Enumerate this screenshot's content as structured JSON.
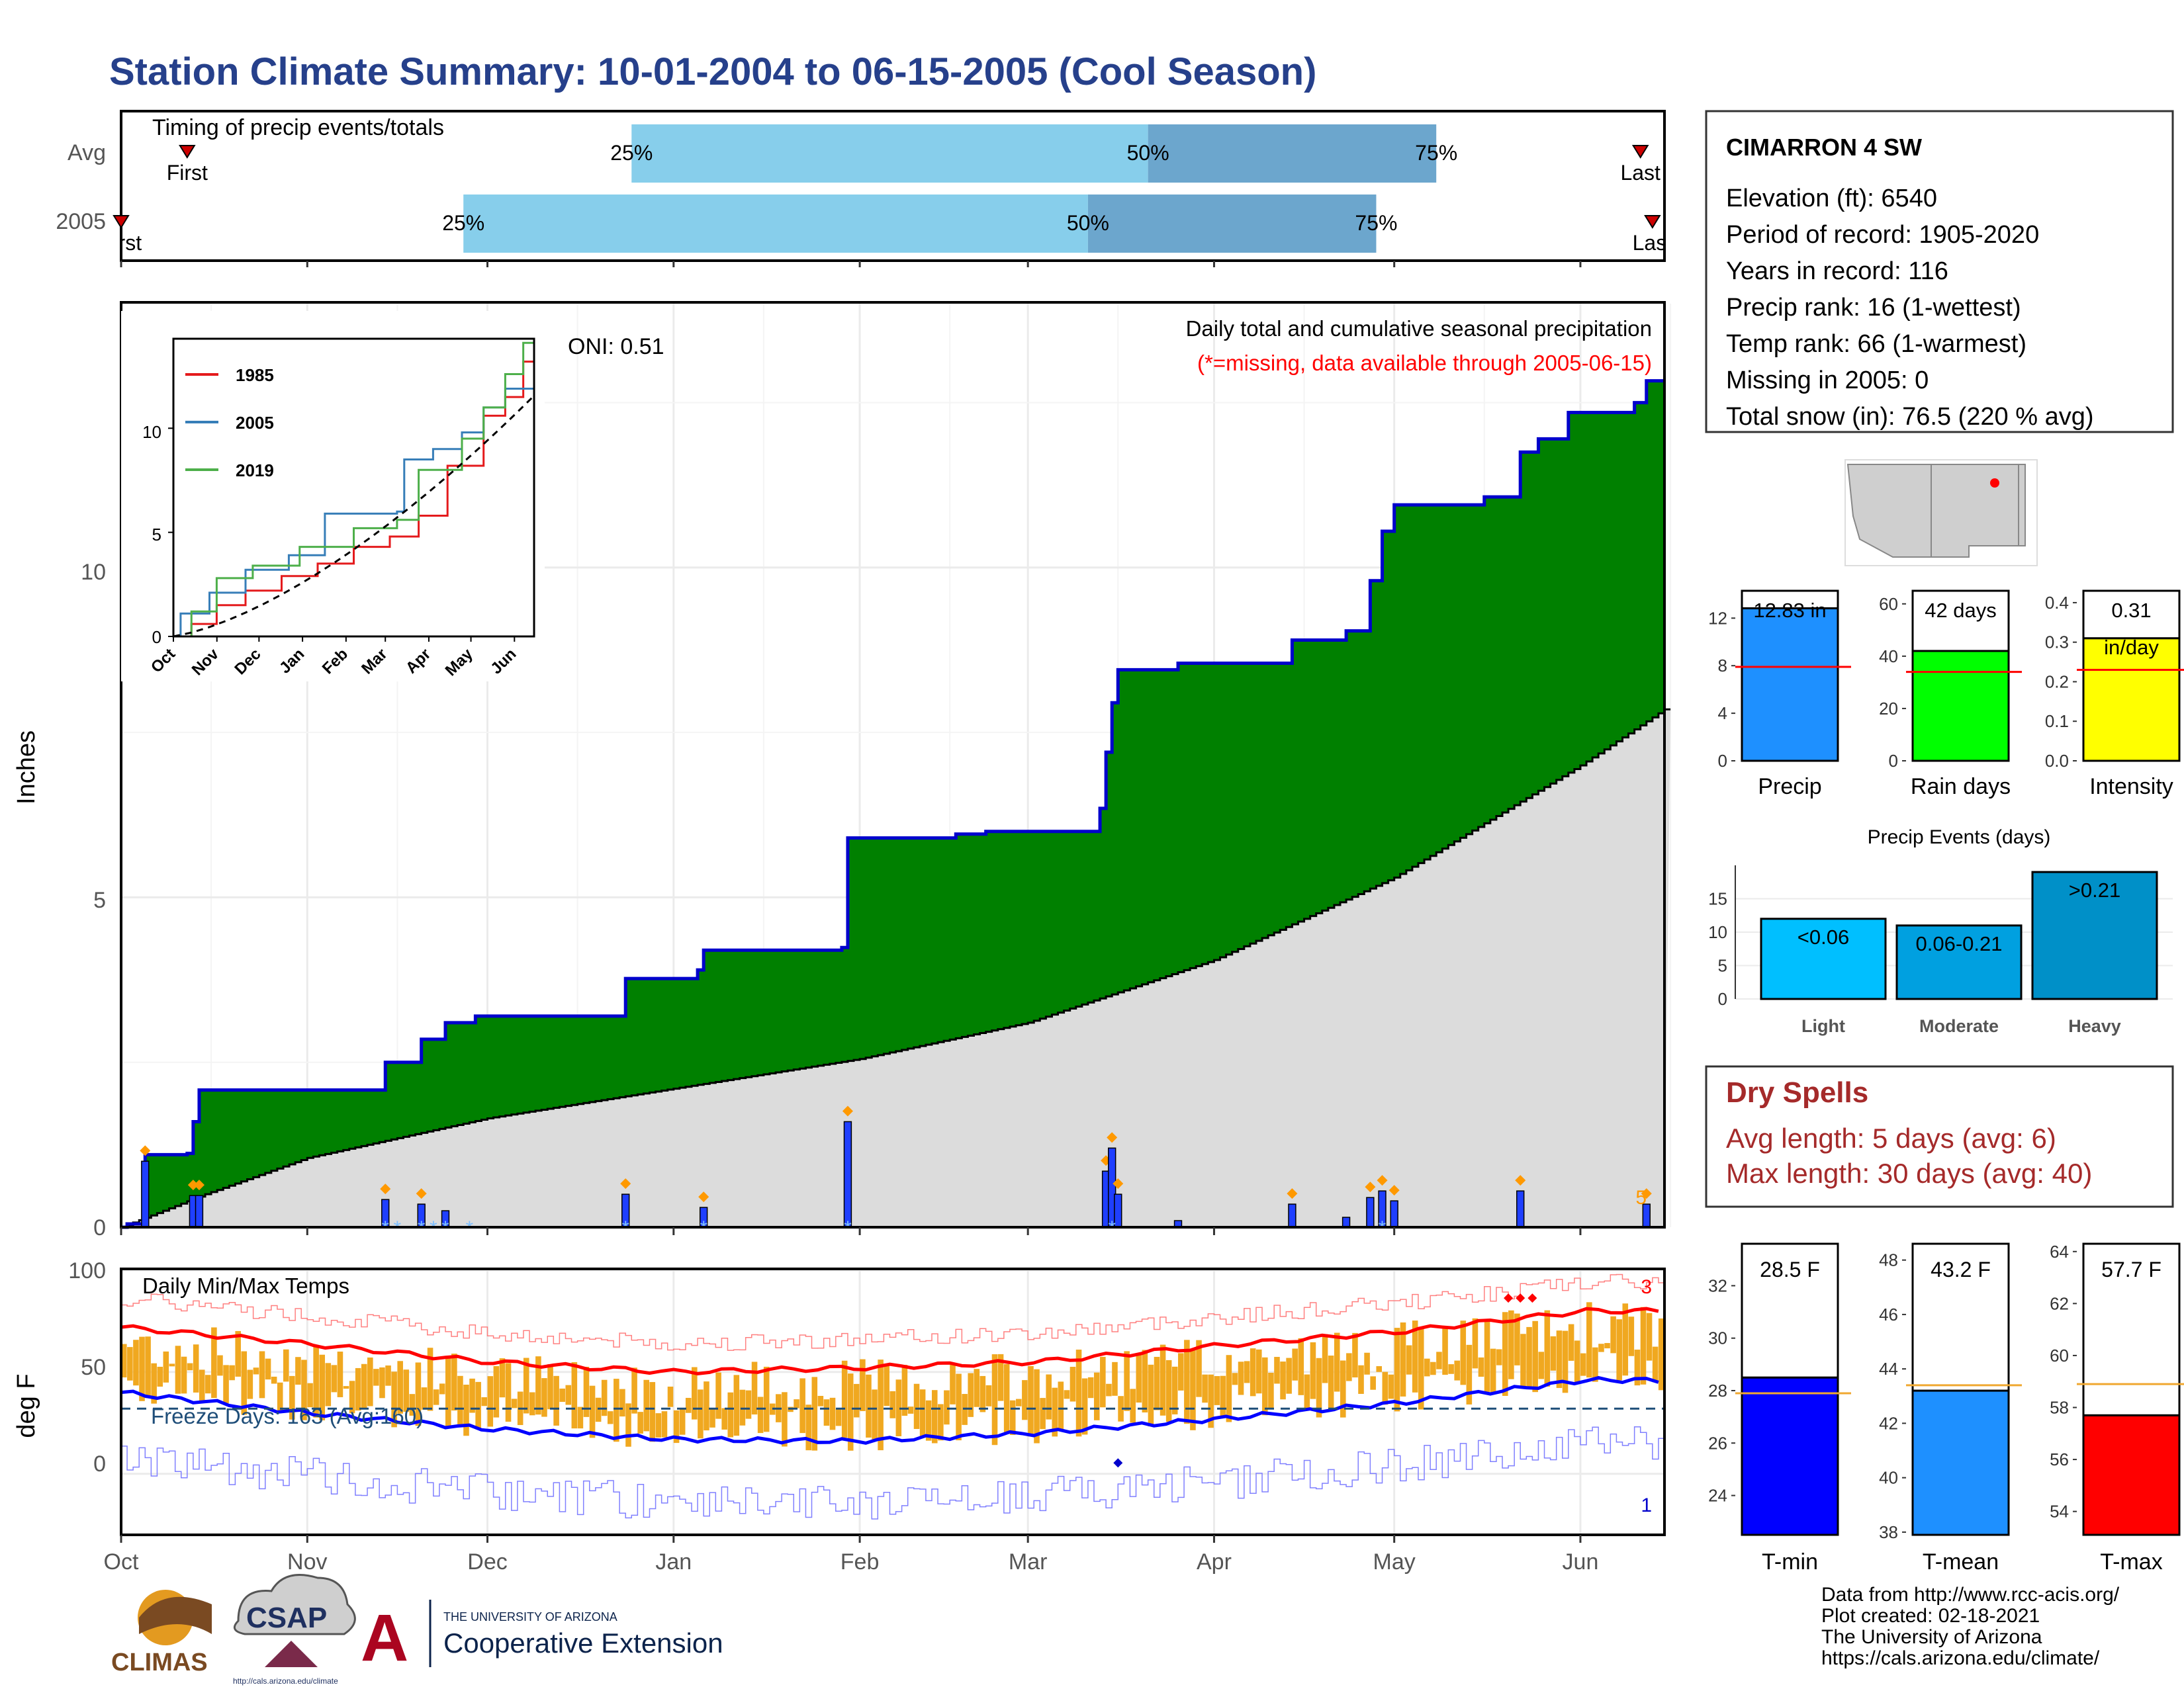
{
  "title": "Station Climate Summary: 10-01-2004 to 06-15-2005 (Cool Season)",
  "colors": {
    "title": "#26408b",
    "q_light": "#87ceeb",
    "q_dark": "#6ca6cd",
    "marker": "#cc0000",
    "precip_fill": "#008000",
    "normal_fill": "#dcdcdc",
    "precip_line": "#0000cc",
    "daily_bar": "#1f3fff",
    "tmax": "#ff0000",
    "tmin": "#0000ff",
    "temp_bar": "#f0a820",
    "freeze_line": "#1f4e79",
    "snow": "#7fbfff",
    "dry_spells": "#a52a2a",
    "precip_bar": "#1e90ff",
    "rain_bar": "#00ff00",
    "intensity_bar": "#ffff00",
    "light_bar": "#00bfff",
    "moderate_bar": "#00a0e0",
    "heavy_bar": "#0090c8",
    "tmin_bar": "#0000ff",
    "tmean_bar": "#1e90ff",
    "tmax_bar": "#ff0000",
    "avg_line_orange": "#f0a830"
  },
  "timing": {
    "label": "Timing of precip events/totals",
    "rows": [
      {
        "name": "Avg",
        "q25": "2004-12-25",
        "q50": "2005-03-21",
        "q75": "2005-05-08",
        "first_label": "First",
        "last_label": "Last",
        "first": "2004-10-12",
        "last": "2005-06-11"
      },
      {
        "name": "2005",
        "q25": "2004-11-27",
        "q50": "2005-03-11",
        "q75": "2005-04-28",
        "first_label": "First",
        "last_label": "Last",
        "first": "2004-10-01",
        "last": "2005-06-13"
      }
    ],
    "q_labels": [
      "25%",
      "50%",
      "75%"
    ]
  },
  "precip": {
    "ylabel": "Inches",
    "yticks": [
      "0",
      "5",
      "10"
    ],
    "title": "Daily total and cumulative seasonal precipitation",
    "missing_note": "(*=missing, data available through 2005-06-15)",
    "oni": "ONI: 0.51",
    "corner_number": "5"
  },
  "inset": {
    "legend": [
      "1985",
      "2005",
      "2019"
    ],
    "yticks": [
      "0",
      "5",
      "10"
    ],
    "xticks": [
      "Oct",
      "Nov",
      "Dec",
      "Jan",
      "Feb",
      "Mar",
      "Apr",
      "May",
      "Jun"
    ]
  },
  "temps": {
    "ylabel": "deg F",
    "label": "Daily Min/Max Temps",
    "freeze": "Freeze Days: 163 (Avg:160)",
    "yticks": [
      "0",
      "50",
      "100"
    ],
    "top_count": "3",
    "bottom_count": "1"
  },
  "x_axis_months": [
    "Oct",
    "Nov",
    "Dec",
    "Jan",
    "Feb",
    "Mar",
    "Apr",
    "May",
    "Jun"
  ],
  "station": {
    "name": "CIMARRON 4 SW",
    "lines": [
      "Elevation (ft): 6540",
      "Period of record: 1905-2020",
      "Years in record: 116",
      "Precip rank: 16 (1-wettest)",
      "Temp rank: 66 (1-warmest)",
      "Missing in 2005: 0",
      "Total snow (in): 76.5 (220 % avg)"
    ]
  },
  "summary_bars": [
    {
      "label": "Precip",
      "value_label": "12.83 in",
      "value": 12.83,
      "avg": 7.9,
      "yticks": [
        "0",
        "4",
        "8",
        "12"
      ],
      "ymax": 14.3
    },
    {
      "label": "Rain days",
      "value_label": "42 days",
      "value": 42,
      "avg": 34,
      "yticks": [
        "0",
        "20",
        "40",
        "60"
      ],
      "ymax": 65
    },
    {
      "label": "Intensity",
      "value_label": "0.31",
      "value_label2": "in/day",
      "value": 0.31,
      "avg": 0.23,
      "yticks": [
        "0.0",
        "0.1",
        "0.2",
        "0.3",
        "0.4"
      ],
      "ymax": 0.43
    }
  ],
  "events": {
    "title": "Precip Events (days)",
    "yticks": [
      "0",
      "5",
      "10",
      "15"
    ],
    "bars": [
      {
        "label": "Light",
        "value_label": "<0.06",
        "value": 12
      },
      {
        "label": "Moderate",
        "value_label": "0.06-0.21",
        "value": 11
      },
      {
        "label": "Heavy",
        "value_label": ">0.21",
        "value": 19
      }
    ]
  },
  "dry_spells": {
    "title": "Dry Spells",
    "lines": [
      "Avg length: 5 days (avg: 6)",
      "Max length: 30 days (avg: 40)"
    ]
  },
  "temp_bars": [
    {
      "label": "T-min",
      "value_label": "28.5 F",
      "value": 28.5,
      "avg": 27.9,
      "yticks": [
        "24",
        "26",
        "28",
        "30",
        "32"
      ],
      "ymin": 22.5,
      "ymax": 33.6
    },
    {
      "label": "T-mean",
      "value_label": "43.2 F",
      "value": 43.2,
      "avg": 43.4,
      "yticks": [
        "38",
        "40",
        "42",
        "44",
        "46",
        "48"
      ],
      "ymin": 37.9,
      "ymax": 48.6
    },
    {
      "label": "T-max",
      "value_label": "57.7 F",
      "value": 57.7,
      "avg": 58.9,
      "yticks": [
        "54",
        "56",
        "58",
        "60",
        "62",
        "64"
      ],
      "ymin": 53.1,
      "ymax": 64.3
    }
  ],
  "footer": {
    "lines": [
      "Data from http://www.rcc-acis.org/",
      "Plot created: 02-18-2021",
      "The University of Arizona",
      "https://cals.arizona.edu/climate/"
    ],
    "logo_climas": "CLIMAS",
    "logo_csap": "CSAP",
    "logo_csap_url": "http://cals.arizona.edu/climate",
    "logo_ua_top": "THE UNIVERSITY OF ARIZONA",
    "logo_ua_bottom": "Cooperative Extension"
  },
  "chart_data": [
    {
      "type": "area",
      "title": "Daily total and cumulative seasonal precipitation",
      "ylabel": "Inches",
      "ylim": [
        0,
        14
      ],
      "x_range": [
        "2004-10-01",
        "2005-06-15"
      ],
      "series": [
        {
          "name": "",
          "cumulative_steps": [
            [
              "2004-10-01",
              0.0
            ],
            [
              "2004-10-02",
              0.05
            ],
            [
              "2004-10-05",
              1.1
            ],
            [
              "2004-10-12",
              1.12
            ],
            [
              "2004-10-13",
              1.6
            ],
            [
              "2004-10-14",
              2.08
            ],
            [
              "2004-11-14",
              2.5
            ],
            [
              "2004-11-20",
              2.85
            ],
            [
              "2004-11-24",
              3.1
            ],
            [
              "2004-11-29",
              3.2
            ],
            [
              "2004-12-24",
              3.77
            ],
            [
              "2005-01-05",
              3.9
            ],
            [
              "2005-01-06",
              4.2
            ],
            [
              "2005-01-29",
              4.24
            ],
            [
              "2005-01-30",
              5.9
            ],
            [
              "2005-02-17",
              5.96
            ],
            [
              "2005-02-22",
              6.0
            ],
            [
              "2005-03-13",
              6.35
            ],
            [
              "2005-03-14",
              7.2
            ],
            [
              "2005-03-15",
              7.95
            ],
            [
              "2005-03-16",
              8.45
            ],
            [
              "2005-03-26",
              8.55
            ],
            [
              "2005-04-14",
              8.9
            ],
            [
              "2005-04-23",
              9.04
            ],
            [
              "2005-04-27",
              9.8
            ],
            [
              "2005-04-29",
              10.55
            ],
            [
              "2005-05-01",
              10.95
            ],
            [
              "2005-05-16",
              11.07
            ],
            [
              "2005-05-22",
              11.75
            ],
            [
              "2005-05-25",
              11.95
            ],
            [
              "2005-05-30",
              12.35
            ],
            [
              "2005-06-10",
              12.5
            ],
            [
              "2005-06-12",
              12.83
            ]
          ]
        },
        {
          "name": "",
          "normal_points": [
            [
              "2004-10-01",
              0.0
            ],
            [
              "2004-10-15",
              0.5
            ],
            [
              "2004-11-01",
              1.05
            ],
            [
              "2004-12-01",
              1.65
            ],
            [
              "2005-01-01",
              2.1
            ],
            [
              "2005-02-01",
              2.55
            ],
            [
              "2005-03-01",
              3.1
            ],
            [
              "2005-04-01",
              4.05
            ],
            [
              "2005-05-01",
              5.3
            ],
            [
              "2005-06-01",
              7.0
            ],
            [
              "2005-06-15",
              7.85
            ]
          ]
        }
      ],
      "daily_bars": [
        [
          "2004-10-05",
          1.0
        ],
        [
          "2004-10-13",
          0.48
        ],
        [
          "2004-10-14",
          0.48
        ],
        [
          "2004-11-14",
          0.42
        ],
        [
          "2004-11-20",
          0.35
        ],
        [
          "2004-11-24",
          0.25
        ],
        [
          "2004-12-24",
          0.5
        ],
        [
          "2005-01-06",
          0.3
        ],
        [
          "2005-01-30",
          1.6
        ],
        [
          "2005-03-14",
          0.85
        ],
        [
          "2005-03-15",
          1.2
        ],
        [
          "2005-03-16",
          0.5
        ],
        [
          "2005-03-26",
          0.1
        ],
        [
          "2005-04-14",
          0.35
        ],
        [
          "2005-04-23",
          0.15
        ],
        [
          "2005-04-27",
          0.45
        ],
        [
          "2005-04-29",
          0.55
        ],
        [
          "2005-05-01",
          0.4
        ],
        [
          "2005-05-22",
          0.55
        ],
        [
          "2005-06-12",
          0.35
        ]
      ]
    },
    {
      "type": "line",
      "title": "",
      "series": [
        "1985",
        "2005",
        "2019"
      ],
      "ylim": [
        0,
        14
      ],
      "notes": "cumulative precipitation comparison inset"
    },
    {
      "type": "bar",
      "title": "Daily Min/Max Temps",
      "ylabel": "deg F",
      "ylim": [
        -30,
        100
      ],
      "freeze_line": 32,
      "monthly_mean_max": [
        72,
        64,
        55,
        50,
        52,
        55,
        63,
        70,
        80
      ],
      "monthly_mean_min": [
        40,
        30,
        22,
        17,
        16,
        20,
        27,
        35,
        46
      ]
    }
  ]
}
